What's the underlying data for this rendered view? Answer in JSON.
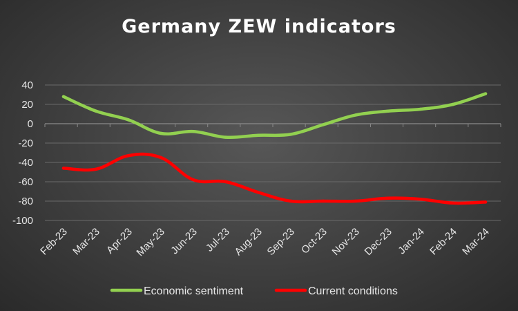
{
  "chart_data": {
    "type": "line",
    "title": "Germany ZEW indicators",
    "xlabel": "",
    "ylabel": "",
    "categories": [
      "Feb-23",
      "Mar-23",
      "Apr-23",
      "May-23",
      "Jun-23",
      "Jul-23",
      "Aug-23",
      "Sep-23",
      "Oct-23",
      "Nov-23",
      "Dec-23",
      "Jan-24",
      "Feb-24",
      "Mar-24"
    ],
    "ylim": [
      -100,
      40
    ],
    "yticks": [
      40,
      20,
      0,
      -20,
      -40,
      -60,
      -80,
      -100
    ],
    "grid": true,
    "legend_position": "bottom",
    "series": [
      {
        "name": "Economic sentiment",
        "color": "#92d050",
        "values": [
          28,
          13,
          4,
          -10,
          -8,
          -14,
          -12,
          -11,
          -1,
          9,
          13,
          15,
          20,
          31
        ]
      },
      {
        "name": "Current conditions",
        "color": "#ff0000",
        "values": [
          -46,
          -47,
          -33,
          -35,
          -58,
          -60,
          -71,
          -80,
          -80,
          -80,
          -77,
          -78,
          -82,
          -81
        ]
      }
    ]
  }
}
